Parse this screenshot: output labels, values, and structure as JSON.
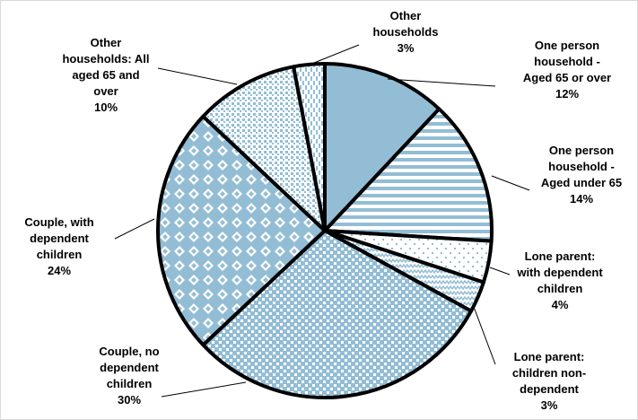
{
  "chart_data": {
    "type": "pie",
    "title": "",
    "start_angle_deg": 0,
    "direction": "clockwise",
    "colors": {
      "fill": "#93bdd5",
      "pattern_bg": "#ffffff",
      "outline": "#000000"
    },
    "slices": [
      {
        "name": "One person household - Aged 65 or over",
        "value": 12,
        "label_lines": [
          "One person",
          "household -",
          "Aged 65 or over",
          "12%"
        ],
        "pattern": "solid"
      },
      {
        "name": "One person household - Aged under 65",
        "value": 14,
        "label_lines": [
          "One person",
          "household -",
          "Aged under 65",
          "14%"
        ],
        "pattern": "horizontal-stripes"
      },
      {
        "name": "Lone parent: with dependent children",
        "value": 4,
        "label_lines": [
          "Lone parent:",
          "with dependent",
          "children",
          "4%"
        ],
        "pattern": "sparse-dots"
      },
      {
        "name": "Lone parent: children non-dependent",
        "value": 3,
        "label_lines": [
          "Lone parent:",
          "children non-",
          "dependent",
          "3%"
        ],
        "pattern": "zigzag"
      },
      {
        "name": "Couple, no dependent children",
        "value": 30,
        "label_lines": [
          "Couple, no",
          "dependent",
          "children",
          "30%"
        ],
        "pattern": "small-checks"
      },
      {
        "name": "Couple, with dependent children",
        "value": 24,
        "label_lines": [
          "Couple, with",
          "dependent",
          "children",
          "24%"
        ],
        "pattern": "large-diamonds"
      },
      {
        "name": "Other households: All aged 65 and over",
        "value": 10,
        "label_lines": [
          "Other",
          "households: All",
          "aged 65 and",
          "over",
          "10%"
        ],
        "pattern": "fine-dots"
      },
      {
        "name": "Other households",
        "value": 3,
        "label_lines": [
          "Other",
          "households",
          "3%"
        ],
        "pattern": "vertical-dashes"
      }
    ]
  }
}
